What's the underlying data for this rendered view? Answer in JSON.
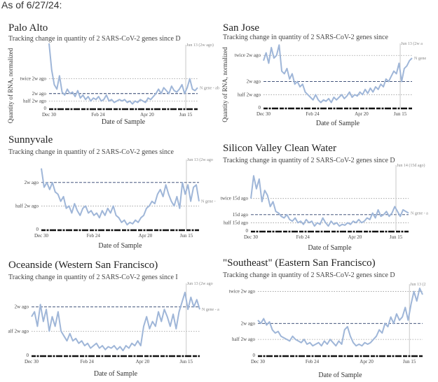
{
  "page": {
    "as_of": "As of 6/27/24:"
  },
  "chart_data": [
    {
      "type": "line",
      "title": "Palo Alto",
      "subtitle": "Tracking change in quantity of 2 SARS-CoV-2 genes since D",
      "xlabel": "Date of Sample",
      "ylabel": "Quantity of RNA, normalized",
      "x_ticks": [
        "Dec 30",
        "Feb 24",
        "Apr 20",
        "Jun 15"
      ],
      "y_ticks": [
        {
          "v": 0,
          "label": "0"
        },
        {
          "v": 0.5,
          "label": "half 2w ago"
        },
        {
          "v": 1,
          "label": "2w ago"
        },
        {
          "v": 2,
          "label": "twice 2w ago"
        }
      ],
      "ylim": [
        0,
        4
      ],
      "baseline": 1,
      "marker_label": "Jun 13 (2w ago)",
      "marker_x": 0.92,
      "series_label": "N gene - ab",
      "series": [
        {
          "values": [
            4.5,
            2.6,
            1.6,
            1.3,
            2.2,
            1.1,
            0.9,
            1.3,
            1.0,
            1.1,
            0.8,
            1.2,
            0.7,
            0.9,
            0.6,
            0.8,
            0.5,
            0.7,
            0.6,
            0.8,
            0.5,
            0.6,
            0.9,
            0.5,
            0.6,
            0.4,
            0.5,
            0.6,
            0.5,
            0.6,
            0.4,
            0.5,
            0.3,
            0.5,
            0.4,
            0.6,
            0.5,
            0.4,
            0.7,
            0.6,
            0.8,
            1.0,
            1.3,
            1.0,
            1.4,
            1.2,
            1.0,
            1.5,
            1.2,
            1.1,
            1.3,
            1.6,
            1.0,
            1.4,
            2.0,
            1.3,
            1.2,
            1.4
          ]
        }
      ]
    },
    {
      "type": "line",
      "title": "San Jose",
      "subtitle": "Tracking change in quantity of 2 SARS-CoV-2 genes since",
      "xlabel": "Date of Sample",
      "ylabel": "Quantity of RNA, normalized",
      "x_ticks": [
        "Dec 30",
        "Feb 24",
        "Apr 20",
        "Jun 15"
      ],
      "y_ticks": [
        {
          "v": 0,
          "label": "0"
        },
        {
          "v": 0.5,
          "label": "half 2w ago"
        },
        {
          "v": 1,
          "label": "2w ago"
        },
        {
          "v": 2,
          "label": "twice 2w ago"
        }
      ],
      "ylim": [
        0,
        2.3
      ],
      "baseline": 1,
      "marker_label": "Jun 13 (2w a",
      "marker_x": 0.92,
      "series_label": "N gene",
      "series": [
        {
          "values": [
            1.8,
            2.1,
            1.7,
            2.3,
            1.9,
            2.0,
            2.4,
            1.4,
            1.3,
            1.5,
            1.1,
            1.3,
            0.9,
            1.0,
            0.8,
            0.9,
            0.6,
            0.5,
            0.4,
            0.3,
            0.5,
            0.3,
            0.2,
            0.3,
            0.25,
            0.35,
            0.2,
            0.4,
            0.3,
            0.4,
            0.5,
            0.35,
            0.45,
            0.6,
            0.4,
            0.5,
            0.45,
            0.6,
            0.5,
            0.7,
            0.55,
            0.75,
            0.6,
            0.8,
            0.7,
            0.9,
            0.8,
            1.1,
            1.0,
            1.2,
            1.4,
            1.3,
            1.7,
            1.0,
            1.5,
            1.6,
            1.8,
            1.9
          ]
        }
      ]
    },
    {
      "type": "line",
      "title": "Sunnyvale",
      "subtitle": "Tracking change in quantity of 2 SARS-CoV-2 genes since",
      "xlabel": "Date of Sample",
      "ylabel": "",
      "x_ticks": [
        "Dec 30",
        "Feb 24",
        "Apr 20",
        "Jun 15"
      ],
      "y_ticks": [
        {
          "v": 0,
          "label": "0"
        },
        {
          "v": 0.5,
          "label": "half 2w ago"
        },
        {
          "v": 1,
          "label": "2w ago"
        }
      ],
      "ylim": [
        0,
        1.4
      ],
      "baseline": 1,
      "marker_label": "Jun 13 (2w ago",
      "marker_x": 0.92,
      "series_label": "N gene -",
      "series": [
        {
          "values": [
            1.3,
            0.9,
            1.0,
            0.85,
            1.0,
            0.8,
            0.75,
            0.6,
            0.7,
            0.45,
            0.5,
            0.35,
            0.55,
            0.4,
            0.3,
            0.45,
            0.5,
            0.35,
            0.4,
            0.3,
            0.35,
            0.25,
            0.4,
            0.3,
            0.45,
            0.35,
            0.5,
            0.3,
            0.25,
            0.15,
            0.2,
            0.1,
            0.15,
            0.12,
            0.2,
            0.15,
            0.25,
            0.3,
            0.45,
            0.5,
            0.6,
            0.55,
            0.75,
            0.85,
            0.7,
            0.95,
            0.75,
            0.6,
            0.5,
            0.7,
            0.45,
            1.0,
            0.75,
            0.95,
            0.6,
            0.9,
            0.95,
            0.6
          ]
        }
      ]
    },
    {
      "type": "line",
      "title": "Silicon Valley Clean Water",
      "subtitle": "Tracking change in quantity of 2 SARS-CoV-2 genes since D",
      "xlabel": "Date of Sample",
      "ylabel": "",
      "x_ticks": [
        "Dec 30",
        "Feb 24",
        "Apr 20",
        "Jun 15"
      ],
      "y_ticks": [
        {
          "v": 0,
          "label": "0"
        },
        {
          "v": 0.5,
          "label": "half 15d ago"
        },
        {
          "v": 1,
          "label": "15d ago"
        },
        {
          "v": 2,
          "label": "twice 15d ago"
        }
      ],
      "ylim": [
        0,
        3.8
      ],
      "baseline": 1,
      "marker_label": "Jun 14 (15d ago)",
      "marker_x": 0.92,
      "series_label": "N gene - a",
      "series": [
        {
          "values": [
            2.0,
            3.4,
            2.6,
            3.2,
            1.8,
            2.5,
            2.2,
            1.5,
            1.8,
            1.2,
            1.1,
            0.9,
            0.8,
            1.0,
            0.7,
            0.6,
            0.8,
            0.5,
            0.6,
            0.4,
            0.7,
            0.5,
            0.6,
            0.3,
            0.5,
            0.4,
            0.8,
            0.5,
            0.3,
            0.6,
            0.4,
            0.5,
            0.3,
            0.4,
            0.35,
            0.5,
            0.4,
            0.6,
            0.5,
            0.7,
            0.5,
            0.6,
            0.8,
            0.7,
            1.1,
            0.8,
            1.3,
            0.9,
            1.0,
            1.2,
            0.9,
            1.1,
            1.5,
            1.2,
            0.9,
            1.3,
            1.2,
            1.1
          ]
        }
      ]
    },
    {
      "type": "line",
      "title": "Oceanside (Western San Francisco)",
      "subtitle": "Tracking change in quantity of 2 SARS-CoV-2 genes since I",
      "xlabel": "Date of Sample",
      "ylabel": "",
      "x_ticks": [
        "Dec 30",
        "Feb 24",
        "Apr 20",
        "Jun 15"
      ],
      "y_ticks": [
        {
          "v": 0,
          "label": "0"
        },
        {
          "v": 0.5,
          "label": "alf 2w ago"
        },
        {
          "v": 1,
          "label": "2w ago"
        }
      ],
      "ylim": [
        0,
        1.4
      ],
      "baseline": 1,
      "marker_label": "Jun 13 (2w ago",
      "marker_x": 0.92,
      "series_label": "N gene - a",
      "series": [
        {
          "values": [
            0.8,
            0.9,
            0.6,
            1.05,
            0.7,
            0.95,
            0.5,
            0.8,
            0.6,
            0.9,
            0.5,
            0.4,
            0.3,
            0.45,
            0.3,
            0.35,
            0.25,
            0.3,
            0.2,
            0.25,
            0.15,
            0.2,
            0.25,
            0.15,
            0.2,
            0.12,
            0.18,
            0.15,
            0.2,
            0.12,
            0.18,
            0.1,
            0.2,
            0.15,
            0.25,
            0.2,
            0.3,
            0.2,
            0.6,
            0.8,
            0.55,
            0.7,
            0.6,
            0.9,
            0.7,
            0.95,
            0.8,
            0.6,
            0.85,
            0.55,
            0.9,
            1.1,
            1.3,
            0.95,
            1.2,
            1.0,
            1.15,
            0.95
          ]
        }
      ]
    },
    {
      "type": "line",
      "title": "\"Southeast\" (Eastern San Francisco)",
      "subtitle": "Tracking change in quantity of 2 SARS-CoV-2 genes since D",
      "xlabel": "Date of Sample",
      "ylabel": "",
      "x_ticks": [
        "Dec 30",
        "Feb 24",
        "Apr 20",
        "Jun 15"
      ],
      "y_ticks": [
        {
          "v": 0,
          "label": "0"
        },
        {
          "v": 0.5,
          "label": "half 2w ago"
        },
        {
          "v": 1,
          "label": "2w ago"
        },
        {
          "v": 2,
          "label": "twice 2w ago"
        }
      ],
      "ylim": [
        0,
        2.1
      ],
      "baseline": 1,
      "marker_label": "Jun 13 (2",
      "marker_x": 0.92,
      "series_label": "",
      "series": [
        {
          "values": [
            1.1,
            1.0,
            1.15,
            0.95,
            1.05,
            0.8,
            0.7,
            0.75,
            0.6,
            0.55,
            0.5,
            0.45,
            0.6,
            0.5,
            0.45,
            0.4,
            0.5,
            0.35,
            0.4,
            0.3,
            0.35,
            0.4,
            0.3,
            0.45,
            0.35,
            0.5,
            0.4,
            0.3,
            0.45,
            0.35,
            0.8,
            0.9,
            0.6,
            0.4,
            0.3,
            0.35,
            0.3,
            0.4,
            0.35,
            0.4,
            0.5,
            0.6,
            0.8,
            0.7,
            1.0,
            0.9,
            1.2,
            1.0,
            1.3,
            1.1,
            1.2,
            1.5,
            1.1,
            1.6,
            2.0,
            1.7,
            2.1,
            1.9
          ]
        }
      ]
    }
  ]
}
